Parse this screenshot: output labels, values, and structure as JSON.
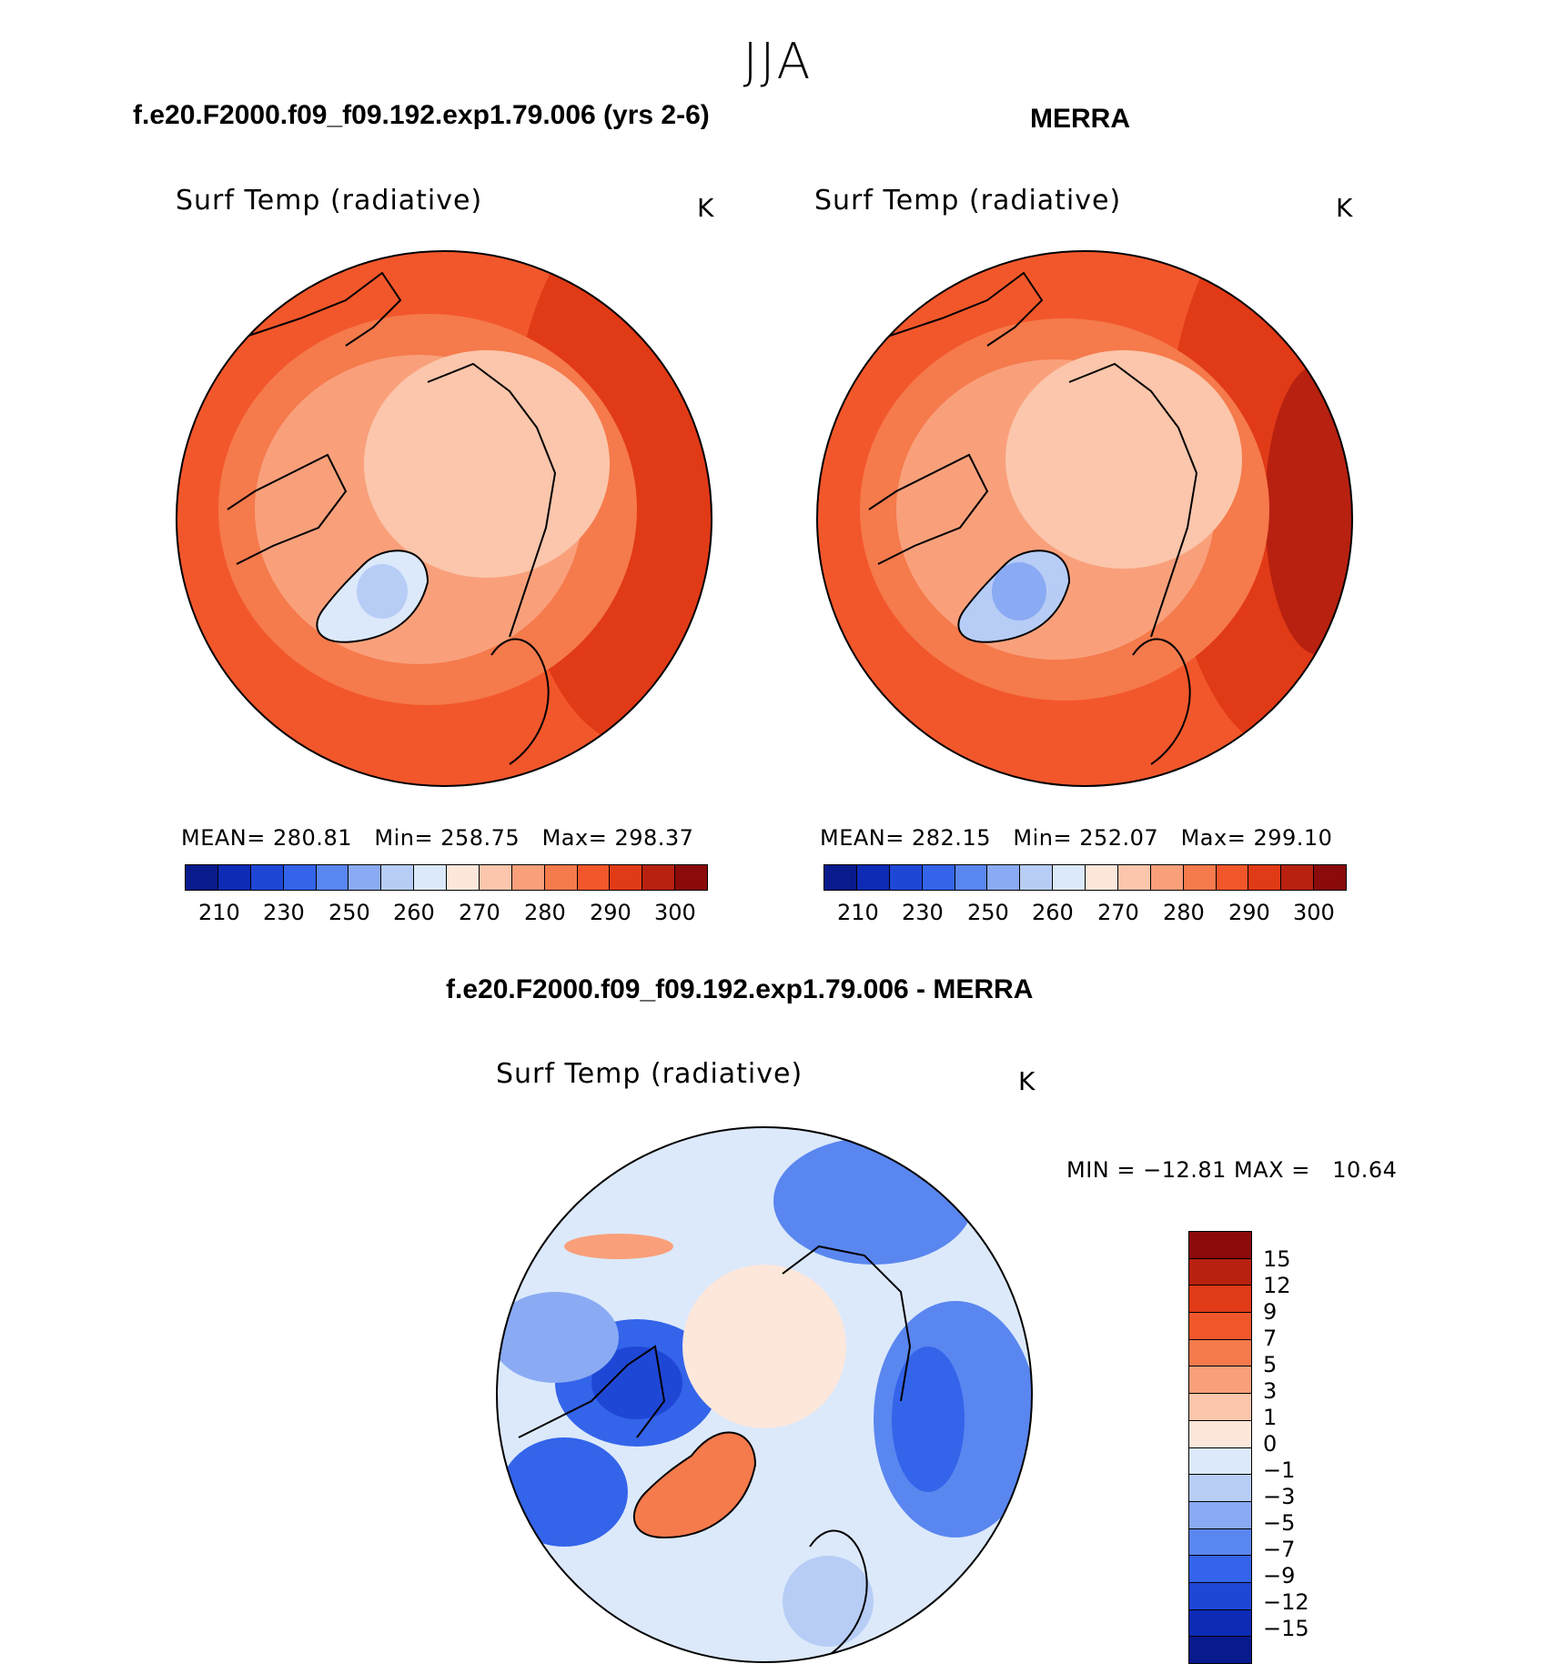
{
  "season": "JJA",
  "panels": {
    "model": {
      "title": "f.e20.F2000.f09_f09.192.exp1.79.006 (yrs 2-6)",
      "variable": "Surf Temp (radiative)",
      "units": "K",
      "mean_label": "MEAN=",
      "mean": "280.81",
      "min_label": "Min=",
      "min": "258.75",
      "max_label": "Max=",
      "max": "298.37",
      "colorbar_ticks": [
        "210",
        "230",
        "250",
        "260",
        "270",
        "280",
        "290",
        "300"
      ]
    },
    "obs": {
      "title": "MERRA",
      "variable": "Surf Temp (radiative)",
      "units": "K",
      "mean_label": "MEAN=",
      "mean": "282.15",
      "min_label": "Min=",
      "min": "252.07",
      "max_label": "Max=",
      "max": "299.10",
      "colorbar_ticks": [
        "210",
        "230",
        "250",
        "260",
        "270",
        "280",
        "290",
        "300"
      ]
    },
    "diff": {
      "title": "f.e20.F2000.f09_f09.192.exp1.79.006 - MERRA",
      "variable": "Surf Temp (radiative)",
      "units": "K",
      "range_text": "MIN = −12.81 MAX =   10.64",
      "colorbar_labels": [
        "15",
        "12",
        "9",
        "7",
        "5",
        "3",
        "1",
        "0",
        "−1",
        "−3",
        "−5",
        "−7",
        "−9",
        "−12",
        "−15"
      ]
    }
  },
  "colors": {
    "abs_scale": [
      "#081a8c",
      "#0d2bb5",
      "#1f47d6",
      "#3464ea",
      "#5a86f0",
      "#8aaaf3",
      "#b7cdf6",
      "#dce9fb",
      "#fde7db",
      "#fbc6ab",
      "#f9a07b",
      "#f57a4c",
      "#f2572b",
      "#e13a17",
      "#b82110",
      "#8b0a0a"
    ],
    "diff_scale": [
      "#8b0a0a",
      "#b82110",
      "#e13a17",
      "#f2572b",
      "#f57a4c",
      "#f9a07b",
      "#fbc6ab",
      "#fde7db",
      "#dce9fb",
      "#b7cdf6",
      "#8aaaf3",
      "#5a86f0",
      "#3464ea",
      "#1f47d6",
      "#0d2bb5",
      "#081a8c"
    ]
  }
}
